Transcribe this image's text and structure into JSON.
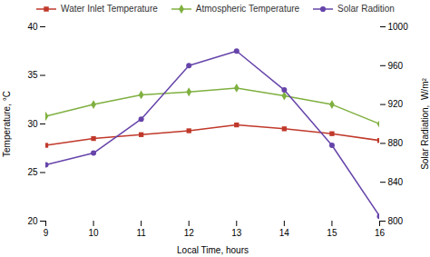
{
  "chart_data": {
    "type": "line",
    "x": [
      9,
      10,
      11,
      12,
      13,
      14,
      15,
      16
    ],
    "xlabel": "Local Time, hours",
    "ylabel": "Temperature, °C",
    "y2label": "Solar Radiation,  W/m²",
    "xlim": [
      9,
      16
    ],
    "xticks": [
      9,
      10,
      11,
      12,
      13,
      14,
      15,
      16
    ],
    "ylim": [
      20,
      40
    ],
    "yticks": [
      20,
      25,
      30,
      35,
      40
    ],
    "y2lim": [
      800,
      1000
    ],
    "y2ticks": [
      800,
      840,
      880,
      920,
      960,
      1000
    ],
    "grid": false,
    "legend": "top",
    "series": [
      {
        "name": "Water Inlet Temperature",
        "color": "#c0392b",
        "marker": "square",
        "values": [
          27.8,
          28.5,
          28.9,
          29.3,
          29.9,
          29.5,
          29.0,
          28.3
        ]
      },
      {
        "name": "Atmospheric Temperature",
        "color": "#7fb040",
        "marker": "diamond",
        "values": [
          30.8,
          32.0,
          33.0,
          33.3,
          33.7,
          32.9,
          32.0,
          30.0
        ]
      },
      {
        "name": "Solar Radition",
        "color": "#6644aa",
        "marker": "circle",
        "axis": "y2",
        "values": [
          858,
          870,
          905,
          960,
          975,
          935,
          878,
          805
        ]
      }
    ]
  }
}
